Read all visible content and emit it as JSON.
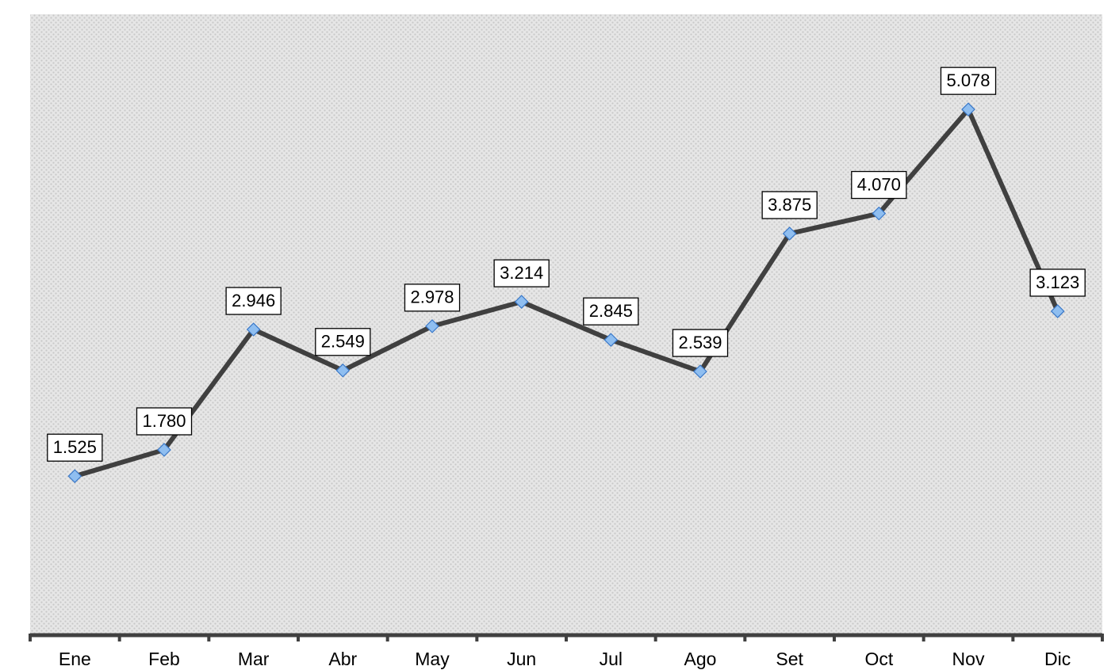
{
  "chart_data": {
    "type": "line",
    "categories": [
      "Ene",
      "Feb",
      "Mar",
      "Abr",
      "May",
      "Jun",
      "Jul",
      "Ago",
      "Set",
      "Oct",
      "Nov",
      "Dic"
    ],
    "series": [
      {
        "color": "#404040",
        "values": [
          1525,
          1780,
          2946,
          2549,
          2978,
          3214,
          2845,
          2539,
          3875,
          4070,
          5078,
          3123
        ],
        "value_labels": [
          "1.525",
          "1.780",
          "2.946",
          "2.549",
          "2.978",
          "3.214",
          "2.845",
          "2.539",
          "3.875",
          "4.070",
          "5.078",
          "3.123"
        ]
      }
    ],
    "marker_color": "#8fbef0",
    "ylim": [
      0,
      6000
    ]
  }
}
